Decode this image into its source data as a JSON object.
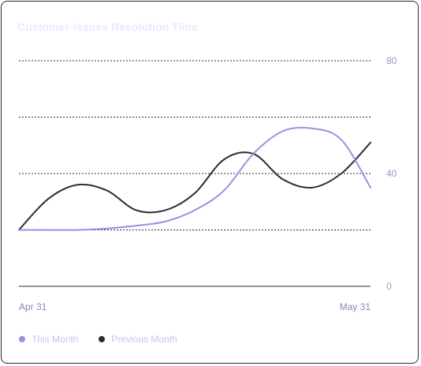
{
  "chart_data": {
    "type": "line",
    "title": "Customer-Issues Resolution Time",
    "x": [
      "Apr 31",
      "",
      "",
      "",
      "",
      "",
      "",
      "",
      "",
      "",
      "",
      "",
      "May 31"
    ],
    "x_tick_labels": [
      "Apr 31",
      "May 31"
    ],
    "ylim": [
      0,
      80
    ],
    "y_ticks": [
      "80",
      "40",
      "0"
    ],
    "y_axis_position": "right",
    "grid": "dotted horizontal",
    "legend_position": "bottom-left",
    "series": [
      {
        "name": "This Month",
        "color": "#9b8fe0",
        "values": [
          20,
          20,
          20,
          20.5,
          21.5,
          23,
          27,
          34,
          47,
          55,
          56,
          52,
          35
        ]
      },
      {
        "name": "Previous Month",
        "color": "#2b2b3b",
        "values": [
          20,
          31,
          36,
          34,
          27,
          27,
          33,
          45,
          47,
          38,
          35,
          40,
          51
        ]
      }
    ]
  },
  "legend": {
    "this_month": "This Month",
    "previous_month": "Previous Month"
  },
  "colors": {
    "title": "#ece8fb",
    "grid": "#2a2a3a",
    "tick": "#9c98bf",
    "this_month": "#9b8fe0",
    "previous_month": "#2b2b3b"
  }
}
